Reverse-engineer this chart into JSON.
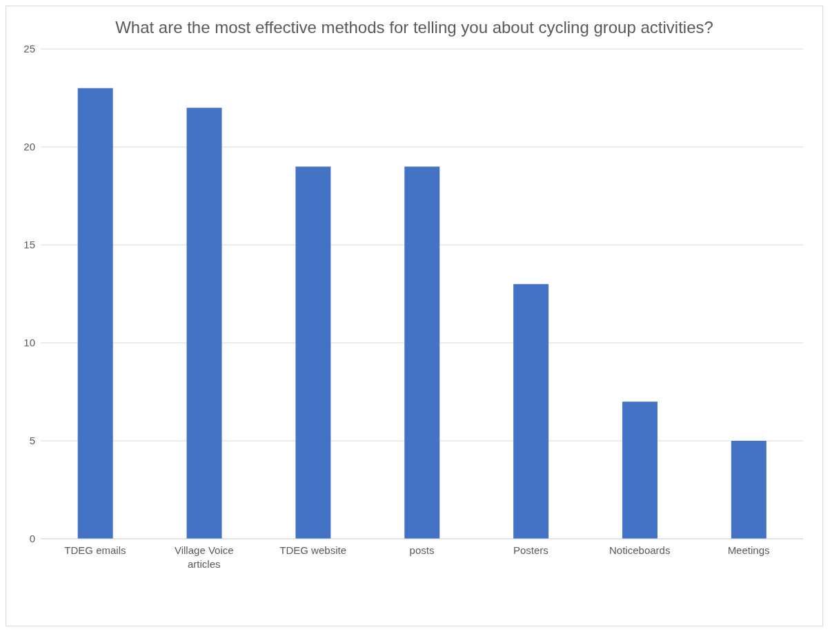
{
  "chart_data": {
    "type": "bar",
    "title": "What are the most effective methods for telling you about cycling group activities?",
    "categories": [
      "TDEG emails",
      "Village Voice articles",
      "TDEG website",
      "posts",
      "Posters",
      "Noticeboards",
      "Meetings"
    ],
    "values": [
      23,
      22,
      19,
      19,
      13,
      7,
      5
    ],
    "color": "#4472c4",
    "ylim": [
      0,
      25
    ],
    "yticks": [
      0,
      5,
      10,
      15,
      20,
      25
    ],
    "grid": "y"
  }
}
